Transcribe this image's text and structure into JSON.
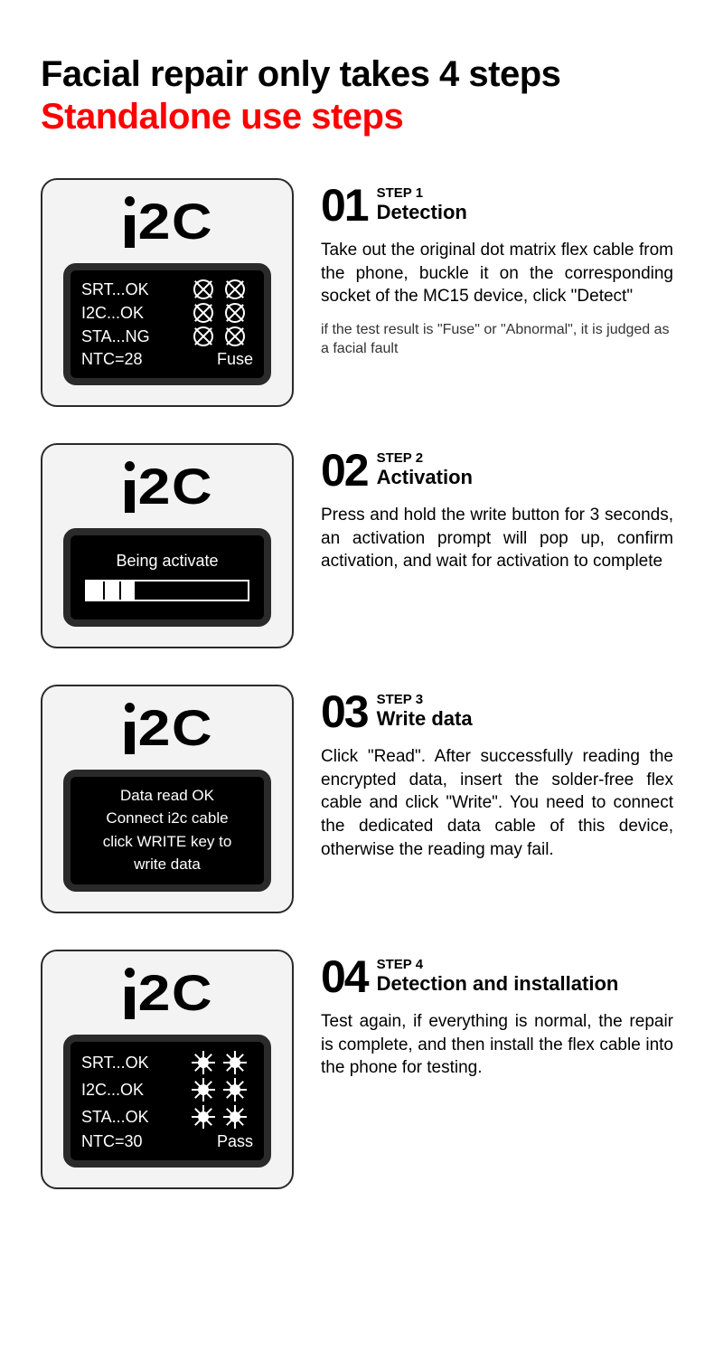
{
  "header": {
    "title": "Facial repair only takes 4 steps",
    "subtitle": "Standalone use steps"
  },
  "logo_text": "i2C",
  "steps": [
    {
      "num": "01",
      "small": "STEP 1",
      "title": "Detection",
      "desc": "Take out the original dot matrix flex cable from the phone, buckle it on the corresponding socket of the MC15 device, click \"Detect\"",
      "note": "if the test result is \"Fuse\" or \"Abnormal\", it is judged as a facial fault",
      "screen": {
        "rows": [
          {
            "label": "SRT...OK",
            "icon": "x"
          },
          {
            "label": "I2C...OK",
            "icon": "x"
          },
          {
            "label": "STA...NG",
            "icon": "x"
          }
        ],
        "ntc": "NTC=28",
        "result": "Fuse"
      }
    },
    {
      "num": "02",
      "small": "STEP 2",
      "title": "Activation",
      "desc": "Press and hold the write button for 3 seconds, an activation prompt will pop up, confirm activation, and wait for activation to complete",
      "screen": {
        "msg": "Being activate",
        "progress_pct": 30
      }
    },
    {
      "num": "03",
      "small": "STEP 3",
      "title": "Write data",
      "desc": "Click \"Read\". After successfully reading the encrypted data, insert the solder-free flex cable and click \"Write\". You need to connect the dedicated data cable of this device, otherwise the reading may fail.",
      "screen": {
        "line1": "Data read OK",
        "line2": "Connect i2c cable",
        "line3": "click WRITE key to",
        "line4": "write data"
      }
    },
    {
      "num": "04",
      "small": "STEP 4",
      "title": "Detection and installation",
      "desc": "Test again, if everything is normal, the repair is complete, and then install the flex cable into the phone for testing.",
      "screen": {
        "rows": [
          {
            "label": "SRT...OK",
            "icon": "sun"
          },
          {
            "label": "I2C...OK",
            "icon": "sun"
          },
          {
            "label": "STA...OK",
            "icon": "sun"
          }
        ],
        "ntc": "NTC=30",
        "result": "Pass"
      }
    }
  ],
  "colors": {
    "title": "#000000",
    "subtitle": "#ff0000",
    "card_bg": "#f3f3f3",
    "card_border": "#2a2a2a",
    "screen_bg": "#000000",
    "screen_fg": "#ffffff"
  }
}
